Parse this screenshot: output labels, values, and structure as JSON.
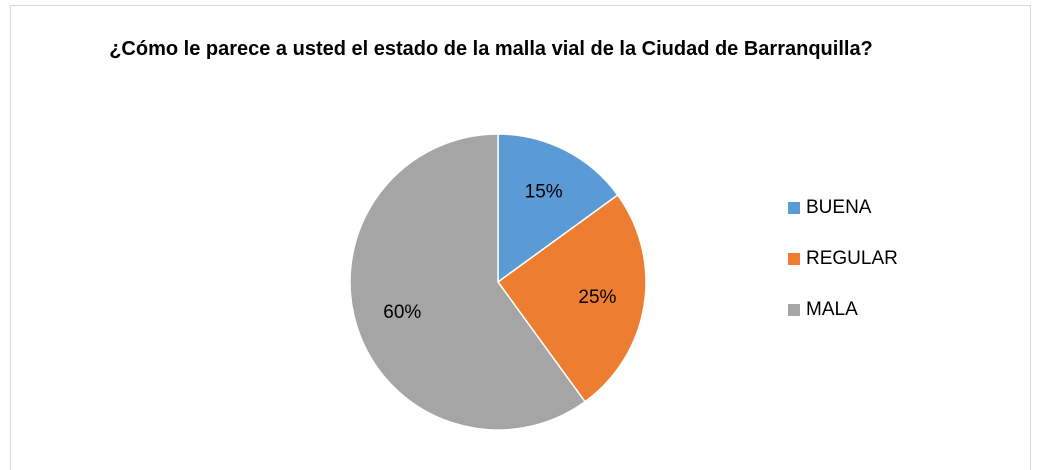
{
  "chart_data": {
    "type": "pie",
    "title": "¿Cómo le parece a usted el estado de la malla vial de la Ciudad de Barranquilla?",
    "categories": [
      "BUENA",
      "REGULAR",
      "MALA"
    ],
    "values": [
      15,
      25,
      60
    ],
    "value_labels": [
      "15%",
      "25%",
      "60%"
    ],
    "colors": [
      "#5b9bd5",
      "#ed7d31",
      "#a5a5a5"
    ],
    "legend": "right"
  }
}
